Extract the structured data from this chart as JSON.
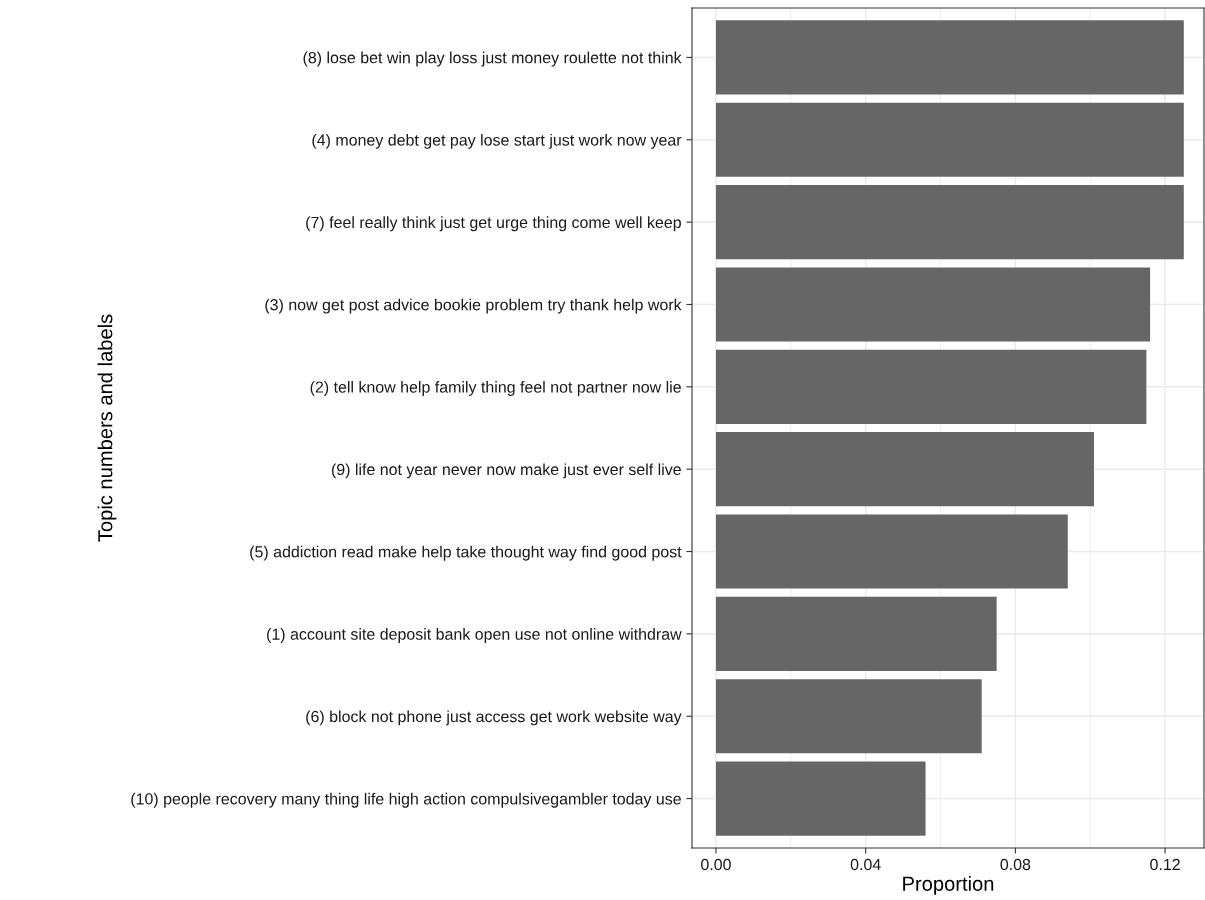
{
  "chart_data": {
    "type": "bar",
    "orientation": "horizontal",
    "xlabel": "Proportion",
    "ylabel": "Topic numbers and labels",
    "categories": [
      "(8) lose bet win play loss just money roulette not think",
      "(4) money debt get pay lose start just work now year",
      "(7) feel really think just get urge thing come well keep",
      "(3) now get post advice bookie problem try thank help work",
      "(2) tell know help family thing feel not partner now lie",
      "(9) life not year never now make just ever self live",
      "(5) addiction read make help take thought way find good post",
      "(1) account site deposit bank open use not online withdraw",
      "(6) block not phone just access get work website way",
      "(10) people recovery many thing life high action compulsivegambler today use"
    ],
    "values": [
      0.125,
      0.125,
      0.125,
      0.116,
      0.115,
      0.101,
      0.094,
      0.075,
      0.071,
      0.056
    ],
    "color": "#666666",
    "xlim": [
      -0.0064,
      0.1304
    ],
    "xticks": [
      {
        "value": 0,
        "label": "0.00"
      },
      0.04,
      0.08,
      0.12
    ],
    "grid": true
  }
}
